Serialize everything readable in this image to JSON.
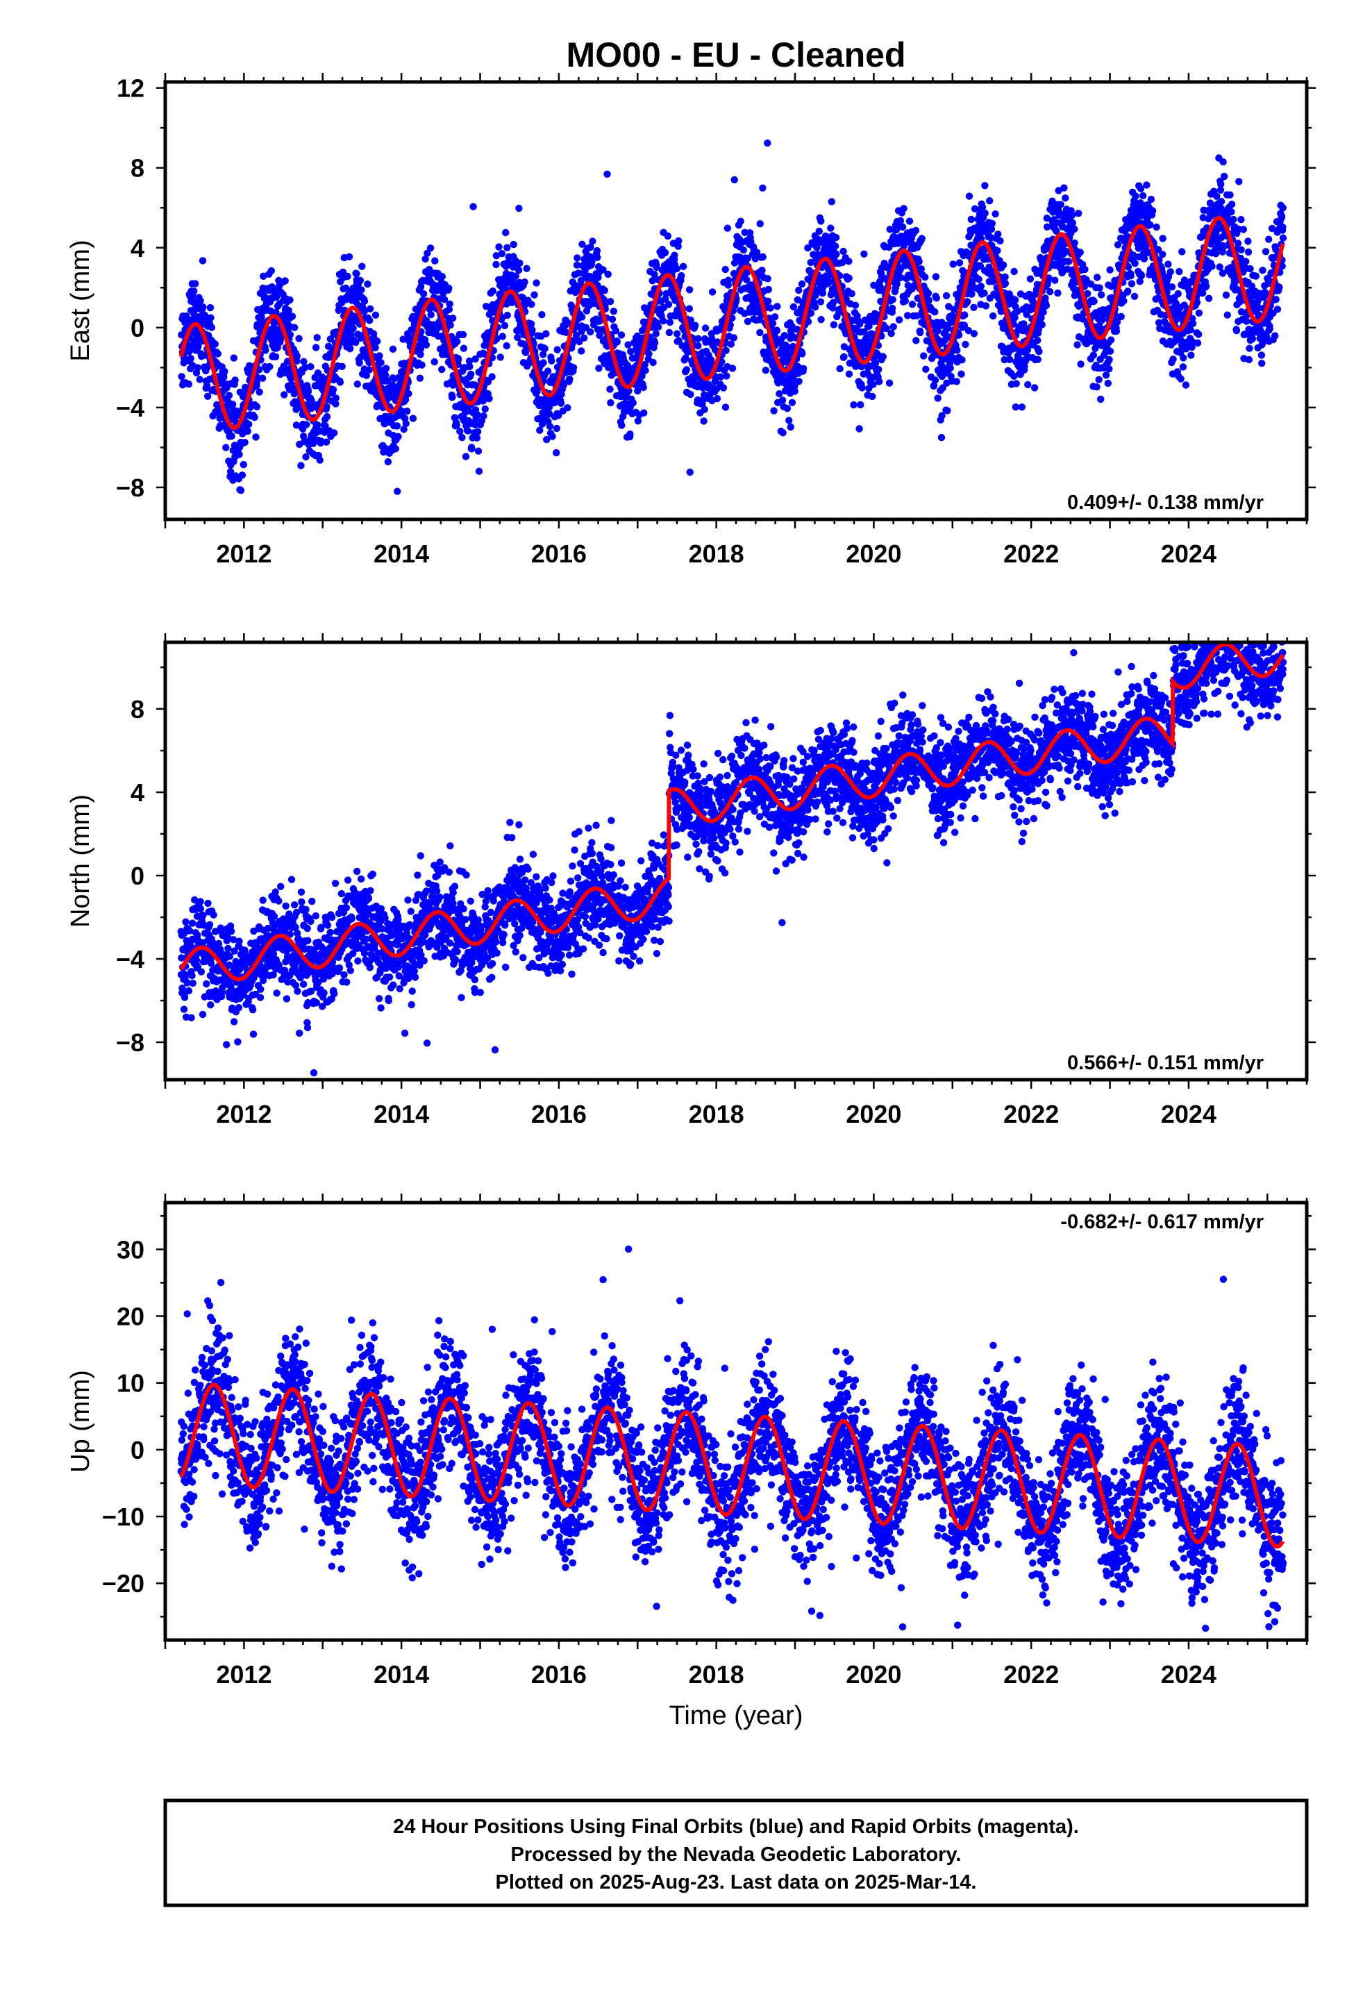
{
  "title": "MO00  - EU - Cleaned",
  "x_axis_label": "Time (year)",
  "colors": {
    "points": "#0000ff",
    "fit": "#ff0000",
    "frame": "#000000"
  },
  "chart_data": [
    {
      "type": "scatter",
      "ylabel": "East (mm)",
      "xlim": [
        2011.0,
        2025.5
      ],
      "ylim": [
        -9.6,
        12.3
      ],
      "x_ticks": [
        2012,
        2014,
        2016,
        2018,
        2020,
        2022,
        2024
      ],
      "y_ticks": [
        -8,
        -4,
        0,
        4,
        8,
        12
      ],
      "y_tick_labels": [
        "−8",
        "−4",
        "0",
        "4",
        "8",
        "12"
      ],
      "rate_text": "0.409+/- 0.138 mm/yr",
      "rate_position": "bottom-right",
      "model": {
        "trend_mm_per_yr": 0.409,
        "intercept_mm": -2.6,
        "annual_amplitude_mm": 2.7,
        "peak_phase_yr": 0.38,
        "noise_mm": 1.25,
        "steps": []
      },
      "series": [
        {
          "name": "",
          "color": "#0000ff",
          "kind": "points",
          "start": 2011.2,
          "end": 2025.2
        },
        {
          "name": "",
          "color": "#ff0000",
          "kind": "fit",
          "start": 2011.2,
          "end": 2025.2
        }
      ]
    },
    {
      "type": "scatter",
      "ylabel": "North (mm)",
      "xlim": [
        2011.0,
        2025.5
      ],
      "ylim": [
        -9.8,
        11.2
      ],
      "x_ticks": [
        2012,
        2014,
        2016,
        2018,
        2020,
        2022,
        2024
      ],
      "y_ticks": [
        -8,
        -4,
        0,
        4,
        8
      ],
      "y_tick_labels": [
        "−8",
        "−4",
        "0",
        "4",
        "8"
      ],
      "rate_text": "0.566+/- 0.151 mm/yr",
      "rate_position": "bottom-right",
      "model": {
        "trend_mm_per_yr": 0.566,
        "intercept_mm": -4.5,
        "annual_amplitude_mm": 0.9,
        "peak_phase_yr": 0.45,
        "noise_mm": 1.1,
        "steps": [
          {
            "at": 2017.4,
            "size_mm": 4.2
          },
          {
            "at": 2023.8,
            "size_mm": 3.0
          }
        ]
      },
      "series": [
        {
          "name": "",
          "color": "#0000ff",
          "kind": "points",
          "start": 2011.2,
          "end": 2025.2
        },
        {
          "name": "",
          "color": "#ff0000",
          "kind": "fit",
          "start": 2011.2,
          "end": 2025.2
        }
      ]
    },
    {
      "type": "scatter",
      "ylabel": "Up (mm)",
      "xlim": [
        2011.0,
        2025.5
      ],
      "ylim": [
        -28.5,
        37.0
      ],
      "x_ticks": [
        2012,
        2014,
        2016,
        2018,
        2020,
        2022,
        2024
      ],
      "y_ticks": [
        -20,
        -10,
        0,
        10,
        20,
        30
      ],
      "y_tick_labels": [
        "−20",
        "−10",
        "0",
        "10",
        "20",
        "30"
      ],
      "rate_text": "-0.682+/- 0.617 mm/yr",
      "rate_position": "top-right",
      "model": {
        "trend_mm_per_yr": -0.682,
        "intercept_mm": 2.5,
        "annual_amplitude_mm": 7.5,
        "peak_phase_yr": 0.62,
        "noise_mm": 4.8,
        "steps": []
      },
      "series": [
        {
          "name": "",
          "color": "#0000ff",
          "kind": "points",
          "start": 2011.2,
          "end": 2025.2
        },
        {
          "name": "",
          "color": "#ff0000",
          "kind": "fit",
          "start": 2011.2,
          "end": 2025.2
        }
      ]
    }
  ],
  "footer": {
    "lines": [
      "24 Hour Positions Using Final Orbits (blue) and Rapid Orbits (magenta).",
      "Processed by the Nevada Geodetic Laboratory.",
      "Plotted on 2025-Aug-23. Last data on 2025-Mar-14."
    ]
  }
}
